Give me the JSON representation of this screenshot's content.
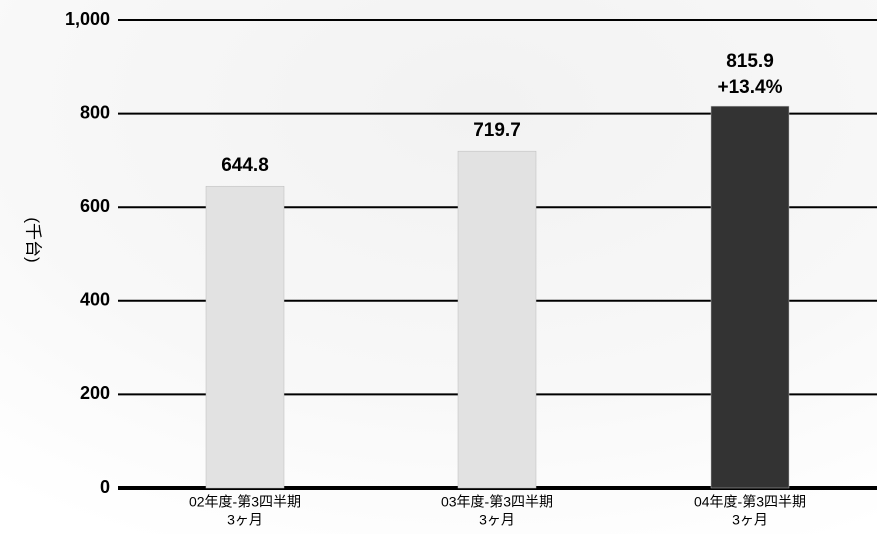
{
  "chart_data": {
    "type": "bar",
    "y_label": "(千台)",
    "categories": [
      [
        "02年度-第3四半期",
        "3ヶ月"
      ],
      [
        "03年度-第3四半期",
        "3ヶ月"
      ],
      [
        "04年度-第3四半期",
        "3ヶ月"
      ]
    ],
    "values": [
      644.8,
      719.7,
      815.9
    ],
    "change_labels": [
      null,
      null,
      "+13.4%"
    ],
    "colors": [
      "#e2e2e2",
      "#e2e2e2",
      "#333333"
    ],
    "ylim": [
      0,
      1000
    ],
    "yticks": [
      0,
      200,
      400,
      600,
      800,
      {
        "value": 1000,
        "label": "1,000"
      }
    ],
    "grid": true
  }
}
